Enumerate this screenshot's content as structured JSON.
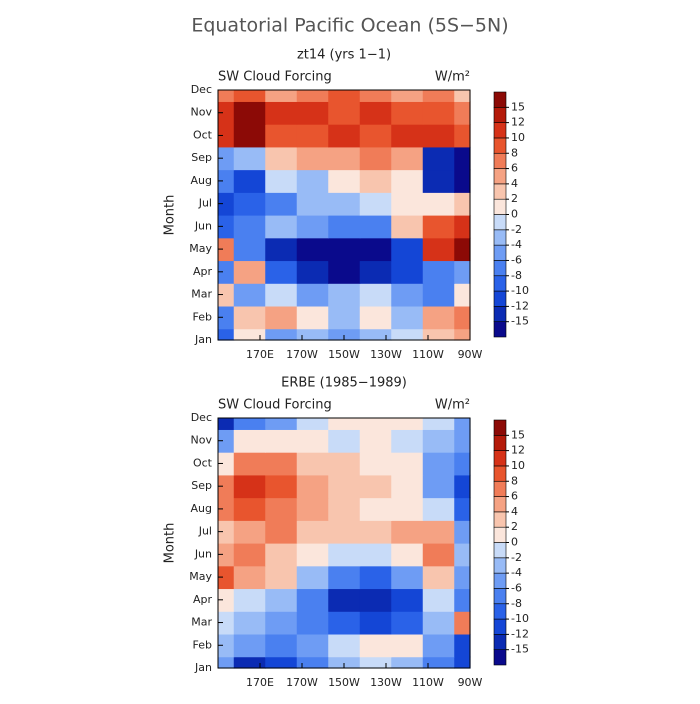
{
  "title": "Equatorial Pacific Ocean (5S−5N)",
  "chart_data": [
    {
      "type": "contour",
      "title": "zt14 (yrs 1−1)",
      "left_label": "SW Cloud Forcing",
      "units": "W/m²",
      "ylabel": "Month",
      "xlim": [
        150,
        270
      ],
      "ylim": [
        1,
        12
      ],
      "xticks": [
        {
          "value": 170,
          "label": "170E"
        },
        {
          "value": 190,
          "label": "170W"
        },
        {
          "value": 210,
          "label": "150W"
        },
        {
          "value": 230,
          "label": "130W"
        },
        {
          "value": 250,
          "label": "110W"
        },
        {
          "value": 270,
          "label": "90W"
        }
      ],
      "yticks": [
        {
          "value": 1,
          "label": "Jan"
        },
        {
          "value": 2,
          "label": "Feb"
        },
        {
          "value": 3,
          "label": "Mar"
        },
        {
          "value": 4,
          "label": "Apr"
        },
        {
          "value": 5,
          "label": "May"
        },
        {
          "value": 6,
          "label": "Jun"
        },
        {
          "value": 7,
          "label": "Jul"
        },
        {
          "value": 8,
          "label": "Aug"
        },
        {
          "value": 9,
          "label": "Sep"
        },
        {
          "value": 10,
          "label": "Oct"
        },
        {
          "value": 11,
          "label": "Nov"
        },
        {
          "value": 12,
          "label": "Dec"
        }
      ],
      "x": [
        150,
        165,
        180,
        195,
        210,
        225,
        240,
        255,
        270
      ],
      "y": [
        1,
        2,
        3,
        4,
        5,
        6,
        7,
        8,
        9,
        10,
        11,
        12
      ],
      "z": [
        [
          -8,
          2,
          -4,
          -2,
          -4,
          -2,
          0,
          4,
          6
        ],
        [
          -6,
          4,
          6,
          2,
          -2,
          2,
          -2,
          6,
          8
        ],
        [
          4,
          -4,
          0,
          -4,
          -2,
          0,
          -4,
          -6,
          2
        ],
        [
          -6,
          6,
          -8,
          -12,
          -16,
          -12,
          -10,
          -6,
          -4
        ],
        [
          8,
          -6,
          -12,
          -16,
          -16,
          -16,
          -10,
          12,
          16
        ],
        [
          -8,
          -6,
          -2,
          -4,
          -6,
          -6,
          4,
          10,
          12
        ],
        [
          -10,
          -8,
          -6,
          -2,
          -2,
          0,
          2,
          2,
          4
        ],
        [
          -6,
          -10,
          0,
          -2,
          2,
          4,
          2,
          -12,
          -16
        ],
        [
          -4,
          -2,
          4,
          6,
          6,
          8,
          6,
          -12,
          -16
        ],
        [
          12,
          16,
          10,
          10,
          12,
          10,
          12,
          12,
          10
        ],
        [
          12,
          16,
          12,
          12,
          10,
          12,
          10,
          10,
          8
        ],
        [
          8,
          10,
          6,
          8,
          10,
          8,
          6,
          8,
          4
        ]
      ],
      "levels": [
        -15,
        -12,
        -10,
        -8,
        -6,
        -4,
        -2,
        0,
        2,
        4,
        6,
        8,
        10,
        12,
        15
      ],
      "colors": [
        "#0a0a8c",
        "#0b2bb3",
        "#1446d6",
        "#2a62e8",
        "#4a80f0",
        "#6e9cf4",
        "#98bbf6",
        "#c8dbf8",
        "#fbe6dc",
        "#f8c5ae",
        "#f5a283",
        "#f07c58",
        "#e8552e",
        "#d63218",
        "#b41a0a",
        "#8c0a06"
      ]
    },
    {
      "type": "contour",
      "title": "ERBE (1985−1989)",
      "left_label": "SW Cloud Forcing",
      "units": "W/m²",
      "ylabel": "Month",
      "xlim": [
        150,
        270
      ],
      "ylim": [
        1,
        12
      ],
      "xticks": [
        {
          "value": 170,
          "label": "170E"
        },
        {
          "value": 190,
          "label": "170W"
        },
        {
          "value": 210,
          "label": "150W"
        },
        {
          "value": 230,
          "label": "130W"
        },
        {
          "value": 250,
          "label": "110W"
        },
        {
          "value": 270,
          "label": "90W"
        }
      ],
      "yticks": [
        {
          "value": 1,
          "label": "Jan"
        },
        {
          "value": 2,
          "label": "Feb"
        },
        {
          "value": 3,
          "label": "Mar"
        },
        {
          "value": 4,
          "label": "Apr"
        },
        {
          "value": 5,
          "label": "May"
        },
        {
          "value": 6,
          "label": "Jun"
        },
        {
          "value": 7,
          "label": "Jul"
        },
        {
          "value": 8,
          "label": "Aug"
        },
        {
          "value": 9,
          "label": "Sep"
        },
        {
          "value": 10,
          "label": "Oct"
        },
        {
          "value": 11,
          "label": "Nov"
        },
        {
          "value": 12,
          "label": "Dec"
        }
      ],
      "x": [
        150,
        165,
        180,
        195,
        210,
        225,
        240,
        255,
        270
      ],
      "y": [
        1,
        2,
        3,
        4,
        5,
        6,
        7,
        8,
        9,
        10,
        11,
        12
      ],
      "z": [
        [
          -4,
          -12,
          -10,
          -6,
          -2,
          0,
          -2,
          -6,
          -10
        ],
        [
          -2,
          -4,
          -6,
          -4,
          0,
          2,
          2,
          -4,
          -10
        ],
        [
          0,
          -2,
          -4,
          -6,
          -8,
          -10,
          -8,
          -2,
          8
        ],
        [
          2,
          0,
          -2,
          -6,
          -12,
          -12,
          -10,
          0,
          -6
        ],
        [
          10,
          6,
          4,
          -2,
          -6,
          -8,
          -4,
          4,
          -4
        ],
        [
          6,
          8,
          4,
          2,
          0,
          0,
          2,
          8,
          -2
        ],
        [
          4,
          6,
          8,
          4,
          4,
          4,
          6,
          6,
          -4
        ],
        [
          8,
          10,
          8,
          6,
          4,
          2,
          2,
          0,
          -8
        ],
        [
          8,
          12,
          10,
          6,
          4,
          4,
          2,
          -4,
          -10
        ],
        [
          2,
          8,
          8,
          4,
          4,
          2,
          2,
          -4,
          -6
        ],
        [
          -4,
          2,
          2,
          2,
          0,
          2,
          0,
          -2,
          -4
        ],
        [
          -12,
          -6,
          -4,
          0,
          2,
          2,
          2,
          0,
          -4
        ]
      ],
      "levels": [
        -15,
        -12,
        -10,
        -8,
        -6,
        -4,
        -2,
        0,
        2,
        4,
        6,
        8,
        10,
        12,
        15
      ],
      "colors": [
        "#0a0a8c",
        "#0b2bb3",
        "#1446d6",
        "#2a62e8",
        "#4a80f0",
        "#6e9cf4",
        "#98bbf6",
        "#c8dbf8",
        "#fbe6dc",
        "#f8c5ae",
        "#f5a283",
        "#f07c58",
        "#e8552e",
        "#d63218",
        "#b41a0a",
        "#8c0a06"
      ]
    }
  ]
}
